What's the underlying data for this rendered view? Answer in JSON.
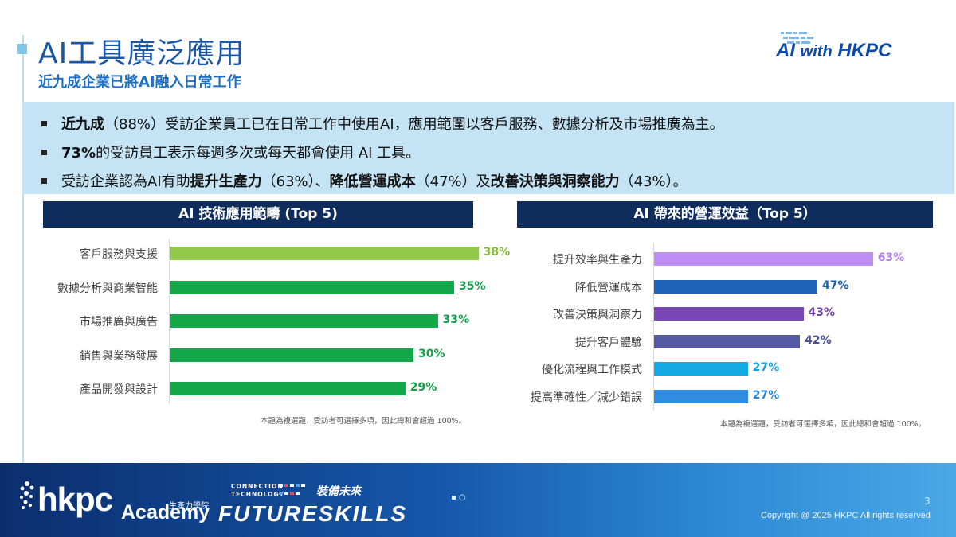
{
  "header": {
    "title": "AI工具廣泛應用",
    "subtitle": "近九成企業已將AI融入日常工作",
    "logo_ai": "AI",
    "logo_with": "with",
    "logo_hkpc": "HKPC"
  },
  "bullets": [
    {
      "bold": "近九成",
      "text": "（88%）受訪企業員工已在日常工作中使用AI，應用範圍以客戶服務、數據分析及市場推廣為主。"
    },
    {
      "bold": "73%",
      "text": "的受訪員工表示每週多次或每天都會使用 AI 工具。"
    },
    {
      "p1": "受訪企業認為AI有助",
      "b1": "提升生產力",
      "p2": "（63%）、",
      "b2": "降低營運成本",
      "p3": "（47%）及",
      "b3": "改善決策與洞察能力",
      "p4": "（43%）。"
    }
  ],
  "chart_data": [
    {
      "type": "bar",
      "orientation": "horizontal",
      "title": "AI 技術應用範疇 (Top 5)",
      "categories": [
        "客戶服務與支援",
        "數據分析與商業智能",
        "市場推廣與廣告",
        "銷售與業務發展",
        "產品開發與設計"
      ],
      "values": [
        38,
        35,
        33,
        30,
        29
      ],
      "value_labels": [
        "38%",
        "35%",
        "33%",
        "30%",
        "29%"
      ],
      "colors": [
        "#92c94a",
        "#14a84a",
        "#14a84a",
        "#14a84a",
        "#14a84a"
      ],
      "label_colors": [
        "#86bd3c",
        "#12a049",
        "#12a049",
        "#12a049",
        "#12a049"
      ],
      "xlim": [
        0,
        40
      ],
      "note": "本題為複選題，受訪者可選擇多項，因此總和會超過 100%。"
    },
    {
      "type": "bar",
      "orientation": "horizontal",
      "title": "AI 帶來的營運效益（Top 5）",
      "categories": [
        "提升效率與生產力",
        "降低營運成本",
        "改善決策與洞察力",
        "提升客戶體驗",
        "優化流程與工作模式",
        "提高準確性／減少錯誤"
      ],
      "values": [
        63,
        47,
        43,
        42,
        27,
        27
      ],
      "value_labels": [
        "63%",
        "47%",
        "43%",
        "42%",
        "27%",
        "27%"
      ],
      "colors": [
        "#bf8ff5",
        "#1e63b8",
        "#7a48b5",
        "#535aa3",
        "#15a9e6",
        "#2f8ce0"
      ],
      "label_colors": [
        "#b27ff0",
        "#1a5cb0",
        "#6d3da8",
        "#4a5198",
        "#14a2e0",
        "#2a84d8"
      ],
      "xlim": [
        0,
        72
      ],
      "note": "本題為複選題，受訪者可選擇多項，因此總和會超過 100%。"
    }
  ],
  "footer": {
    "hkpc": "hkpc",
    "academy_cn": "生產力學院",
    "academy": "Academy",
    "fs_small1": "CONNECTION",
    "fs_small2": "TECHNOLOGY",
    "fs_cn": "裝備未來",
    "future_skills": "FUTURESKILLS",
    "mid_mark": "▪ ○",
    "page_number": "3",
    "copyright": "Copyright @ 2025 HKPC All rights reserved"
  }
}
